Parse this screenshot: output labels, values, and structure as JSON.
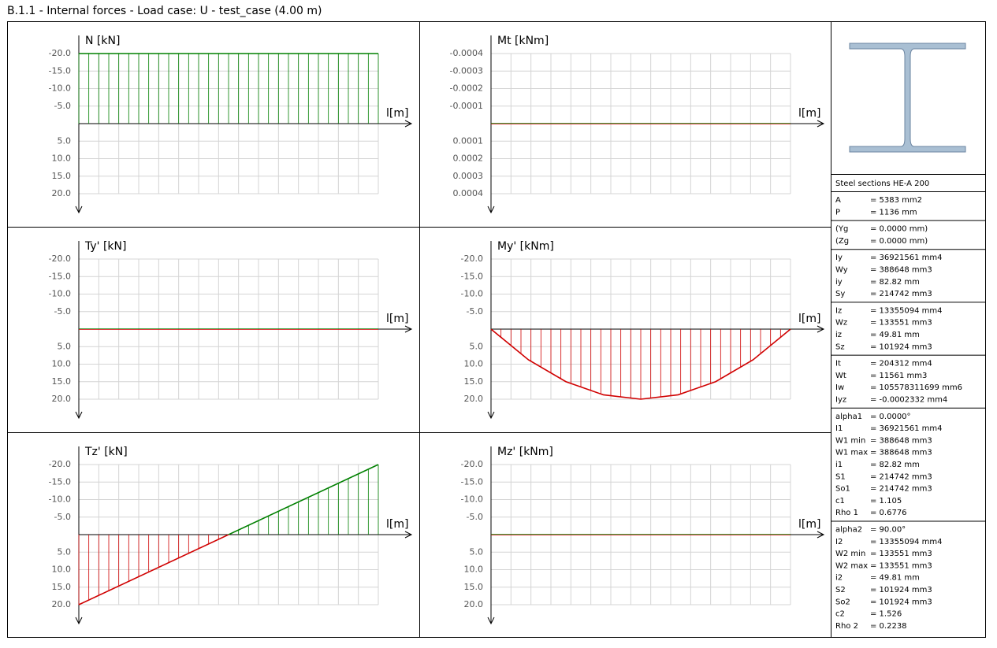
{
  "title": "B.1.1 - Internal forces - Load case: U - test_case (4.00 m)",
  "chart_data": [
    {
      "type": "line",
      "y_label": "N [kN]",
      "x_label": "l[m]",
      "x": [
        0,
        4
      ],
      "values": [
        -20,
        -20
      ],
      "xlim": [
        0,
        4
      ],
      "ylim": [
        -20,
        20
      ],
      "y_inverted": true,
      "grid": true,
      "positive_color": "#d00000",
      "negative_color": "#008000",
      "yticks": [
        {
          "value": -20,
          "label": "-20.0"
        },
        {
          "value": -15,
          "label": "-15.0"
        },
        {
          "value": -10,
          "label": "-10.0"
        },
        {
          "value": -5,
          "label": "-5.0"
        },
        {
          "value": 5,
          "label": "5.0"
        },
        {
          "value": 10,
          "label": "10.0"
        },
        {
          "value": 15,
          "label": "15.0"
        },
        {
          "value": 20,
          "label": "20.0"
        }
      ]
    },
    {
      "type": "line",
      "y_label": "Mt [kNm]",
      "x_label": "l[m]",
      "x": [
        0,
        4
      ],
      "values": [
        0,
        0
      ],
      "xlim": [
        0,
        4
      ],
      "ylim": [
        -0.0004,
        0.0004
      ],
      "y_inverted": true,
      "grid": true,
      "positive_color": "#d00000",
      "negative_color": "#008000",
      "yticks": [
        -0.0004,
        -0.0003,
        -0.0002,
        -0.0001,
        0.0001,
        0.0002,
        0.0003,
        0.0004
      ]
    },
    {
      "type": "line",
      "y_label": "Ty' [kN]",
      "x_label": "l[m]",
      "x": [
        0,
        4
      ],
      "values": [
        0,
        0
      ],
      "xlim": [
        0,
        4
      ],
      "ylim": [
        -20,
        20
      ],
      "y_inverted": true,
      "grid": true,
      "positive_color": "#d00000",
      "negative_color": "#008000",
      "yticks": [
        {
          "value": -20,
          "label": "-20.0"
        },
        {
          "value": -15,
          "label": "-15.0"
        },
        {
          "value": -10,
          "label": "-10.0"
        },
        {
          "value": -5,
          "label": "-5.0"
        },
        {
          "value": 5,
          "label": "5.0"
        },
        {
          "value": 10,
          "label": "10.0"
        },
        {
          "value": 15,
          "label": "15.0"
        },
        {
          "value": 20,
          "label": "20.0"
        }
      ]
    },
    {
      "type": "line",
      "y_label": "My' [kNm]",
      "x_label": "l[m]",
      "x": [
        0,
        0.5,
        1,
        1.5,
        2,
        2.5,
        3,
        3.5,
        4
      ],
      "values": [
        0,
        8.75,
        15,
        18.75,
        20,
        18.75,
        15,
        8.75,
        0
      ],
      "xlim": [
        0,
        4
      ],
      "ylim": [
        -20,
        20
      ],
      "y_inverted": true,
      "grid": true,
      "positive_color": "#d00000",
      "negative_color": "#008000",
      "yticks": [
        {
          "value": -20,
          "label": "-20.0"
        },
        {
          "value": -15,
          "label": "-15.0"
        },
        {
          "value": -10,
          "label": "-10.0"
        },
        {
          "value": -5,
          "label": "-5.0"
        },
        {
          "value": 5,
          "label": "5.0"
        },
        {
          "value": 10,
          "label": "10.0"
        },
        {
          "value": 15,
          "label": "15.0"
        },
        {
          "value": 20,
          "label": "20.0"
        }
      ]
    },
    {
      "type": "line",
      "y_label": "Tz' [kN]",
      "x_label": "l[m]",
      "x": [
        0,
        4
      ],
      "values": [
        20,
        -20
      ],
      "xlim": [
        0,
        4
      ],
      "ylim": [
        -20,
        20
      ],
      "y_inverted": true,
      "grid": true,
      "positive_color": "#d00000",
      "negative_color": "#008000",
      "yticks": [
        {
          "value": -20,
          "label": "-20.0"
        },
        {
          "value": -15,
          "label": "-15.0"
        },
        {
          "value": -10,
          "label": "-10.0"
        },
        {
          "value": -5,
          "label": "-5.0"
        },
        {
          "value": 5,
          "label": "5.0"
        },
        {
          "value": 10,
          "label": "10.0"
        },
        {
          "value": 15,
          "label": "15.0"
        },
        {
          "value": 20,
          "label": "20.0"
        }
      ]
    },
    {
      "type": "line",
      "y_label": "Mz' [kNm]",
      "x_label": "l[m]",
      "x": [
        0,
        4
      ],
      "values": [
        0,
        0
      ],
      "xlim": [
        0,
        4
      ],
      "ylim": [
        -20,
        20
      ],
      "y_inverted": true,
      "grid": true,
      "positive_color": "#d00000",
      "negative_color": "#008000",
      "yticks": [
        {
          "value": -20,
          "label": "-20.0"
        },
        {
          "value": -15,
          "label": "-15.0"
        },
        {
          "value": -10,
          "label": "-10.0"
        },
        {
          "value": -5,
          "label": "-5.0"
        },
        {
          "value": 5,
          "label": "5.0"
        },
        {
          "value": 10,
          "label": "10.0"
        },
        {
          "value": 15,
          "label": "15.0"
        },
        {
          "value": 20,
          "label": "20.0"
        }
      ]
    }
  ],
  "section": {
    "title": "Steel sections HE-A 200",
    "groups": [
      [
        [
          "A",
          "= 5383 mm2"
        ],
        [
          "P",
          "= 1136 mm"
        ]
      ],
      [
        [
          "(Yg",
          "= 0.0000 mm)"
        ],
        [
          "(Zg",
          "= 0.0000 mm)"
        ]
      ],
      [
        [
          "Iy",
          "= 36921561 mm4"
        ],
        [
          "Wy",
          "= 388648 mm3"
        ],
        [
          "iy",
          "= 82.82 mm"
        ],
        [
          "Sy",
          "= 214742 mm3"
        ]
      ],
      [
        [
          "Iz",
          "= 13355094 mm4"
        ],
        [
          "Wz",
          "= 133551 mm3"
        ],
        [
          "iz",
          "= 49.81 mm"
        ],
        [
          "Sz",
          "= 101924 mm3"
        ]
      ],
      [
        [
          "It",
          "= 204312 mm4"
        ],
        [
          "Wt",
          "= 11561 mm3"
        ],
        [
          "Iw",
          "= 105578311699 mm6"
        ],
        [
          "Iyz",
          "= -0.0002332 mm4"
        ]
      ],
      [
        [
          "alpha1",
          "= 0.0000°"
        ],
        [
          "I1",
          "= 36921561 mm4"
        ],
        [
          "W1 min",
          "= 388648 mm3"
        ],
        [
          "W1 max",
          "= 388648 mm3"
        ],
        [
          "i1",
          "= 82.82 mm"
        ],
        [
          "S1",
          "= 214742 mm3"
        ],
        [
          "So1",
          "= 214742 mm3"
        ],
        [
          "c1",
          "= 1.105"
        ],
        [
          "Rho 1",
          "= 0.6776"
        ]
      ],
      [
        [
          "alpha2",
          "= 90.00°"
        ],
        [
          "I2",
          "= 13355094 mm4"
        ],
        [
          "W2 min",
          "= 133551 mm3"
        ],
        [
          "W2 max",
          "= 133551 mm3"
        ],
        [
          "i2",
          "= 49.81 mm"
        ],
        [
          "S2",
          "= 101924 mm3"
        ],
        [
          "So2",
          "= 101924 mm3"
        ],
        [
          "c2",
          "= 1.526"
        ],
        [
          "Rho 2",
          "= 0.2238"
        ]
      ]
    ]
  }
}
